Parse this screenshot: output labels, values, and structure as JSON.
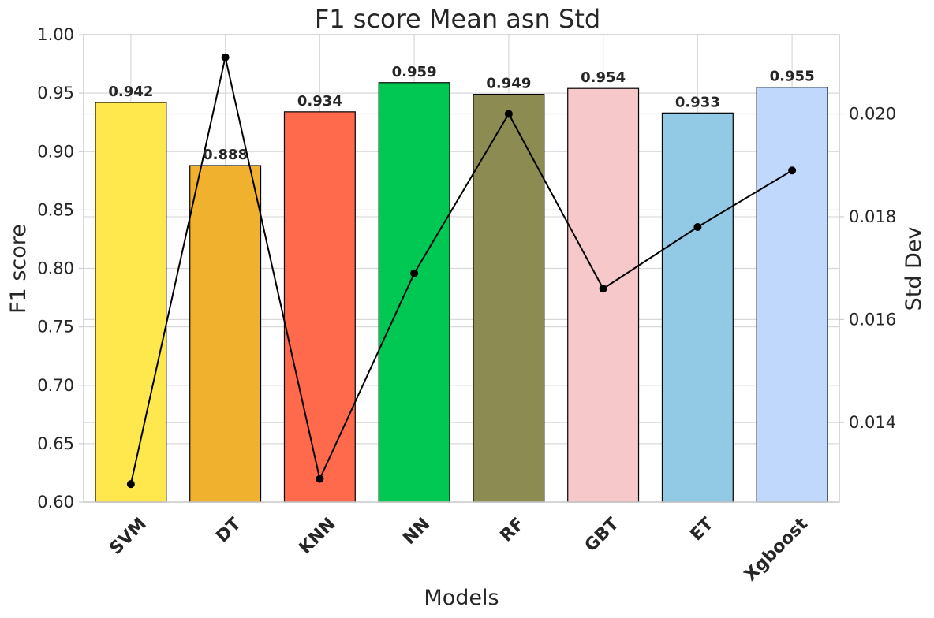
{
  "chart_data": {
    "type": "bar",
    "title": "F1 score Mean asn Std",
    "xlabel": "Models",
    "ylabel": "F1 score",
    "y2label": "Std Dev",
    "categories": [
      "SVM",
      "DT",
      "KNN",
      "NN",
      "RF",
      "GBT",
      "ET",
      "Xgboost"
    ],
    "series": [
      {
        "type": "bar",
        "axis": "left",
        "values": [
          0.942,
          0.888,
          0.934,
          0.959,
          0.949,
          0.954,
          0.933,
          0.955
        ],
        "value_labels": [
          "0.942",
          "0.888",
          "0.934",
          "0.959",
          "0.949",
          "0.954",
          "0.933",
          "0.955"
        ],
        "colors": [
          "#FEE84E",
          "#F0B22E",
          "#FF6A4D",
          "#00C853",
          "#8B8B52",
          "#F6C8CA",
          "#92C9E5",
          "#BFD8FC"
        ]
      },
      {
        "type": "line",
        "axis": "right",
        "values": [
          0.0128,
          0.0211,
          0.0129,
          0.0169,
          0.02,
          0.0166,
          0.0178,
          0.0189
        ],
        "color": "#000000",
        "marker": "circle"
      }
    ],
    "ylim": [
      0.6,
      1.0
    ],
    "yticks": [
      "0.60",
      "0.65",
      "0.70",
      "0.75",
      "0.80",
      "0.85",
      "0.90",
      "0.95",
      "1.00"
    ],
    "y2lim": [
      0.01245,
      0.02154
    ],
    "y2ticks": [
      "0.014",
      "0.016",
      "0.018",
      "0.020"
    ],
    "grid": true,
    "legend": "none"
  }
}
